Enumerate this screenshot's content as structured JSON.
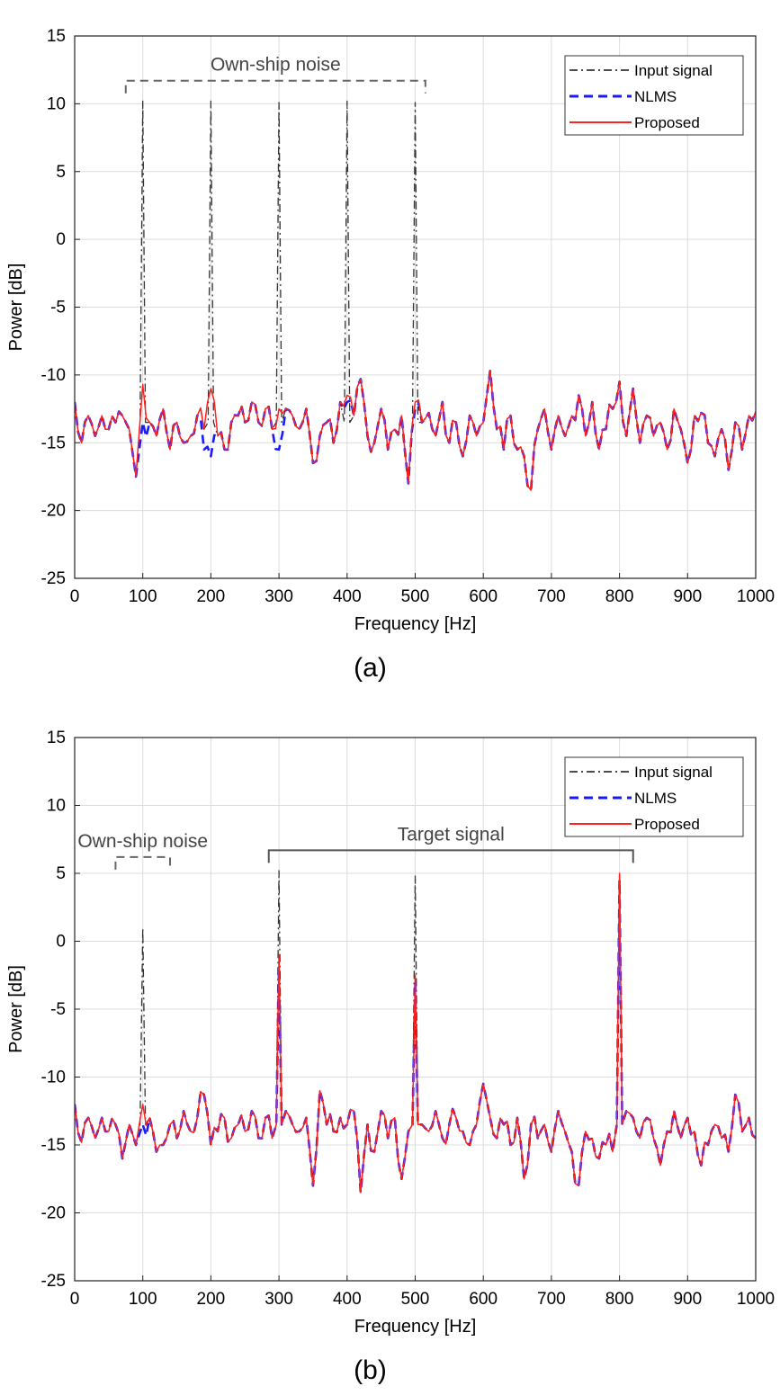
{
  "figure": {
    "captions": [
      "(a)",
      "(b)"
    ]
  },
  "chart_data": [
    {
      "type": "line",
      "panel": "(a)",
      "xlabel": "Frequency [Hz]",
      "ylabel": "Power [dB]",
      "xlim": [
        0,
        1000
      ],
      "ylim": [
        -25,
        15
      ],
      "xticks": [
        0,
        100,
        200,
        300,
        400,
        500,
        600,
        700,
        800,
        900,
        1000
      ],
      "yticks": [
        15,
        10,
        5,
        0,
        -5,
        -10,
        -15,
        -20,
        -25
      ],
      "grid": true,
      "legend_position": "top-right",
      "colors": {
        "Input signal": "#333333",
        "NLMS": "#1a1aff",
        "Proposed": "#ff2020"
      },
      "annotations": [
        {
          "text": "Own-ship noise",
          "x_range": [
            75,
            515
          ],
          "y": 11.7,
          "style": "dashed"
        }
      ],
      "peaks": {
        "Input signal": [
          [
            100,
            10.2
          ],
          [
            200,
            10.2
          ],
          [
            300,
            10.1
          ],
          [
            400,
            10.2
          ],
          [
            500,
            10.1
          ]
        ]
      },
      "noise_floor_db": -14,
      "x": [
        0,
        10,
        20,
        30,
        40,
        50,
        60,
        70,
        80,
        90,
        100,
        110,
        120,
        130,
        140,
        150,
        160,
        170,
        180,
        190,
        200,
        210,
        220,
        230,
        240,
        250,
        260,
        270,
        280,
        290,
        300,
        310,
        320,
        330,
        340,
        350,
        360,
        370,
        380,
        390,
        400,
        410,
        420,
        430,
        440,
        450,
        460,
        470,
        480,
        490,
        500,
        510,
        520,
        530,
        540,
        550,
        560,
        570,
        580,
        590,
        600,
        610,
        620,
        630,
        640,
        650,
        660,
        670,
        680,
        690,
        700,
        710,
        720,
        730,
        740,
        750,
        760,
        770,
        780,
        790,
        800,
        810,
        820,
        830,
        840,
        850,
        860,
        870,
        880,
        890,
        900,
        910,
        920,
        930,
        940,
        950,
        960,
        970,
        980,
        990,
        1000
      ],
      "series": [
        {
          "name": "Input signal",
          "values": [
            -12.0,
            -15.0,
            -13.0,
            -14.5,
            -13.0,
            -14.0,
            -13.5,
            -13.0,
            -14.0,
            -17.5,
            10.2,
            -13.5,
            -14.5,
            -12.5,
            -15.5,
            -13.5,
            -15.0,
            -14.5,
            -13.0,
            -14.0,
            10.2,
            -14.5,
            -15.5,
            -13.5,
            -13.0,
            -13.5,
            -12.0,
            -13.5,
            -12.5,
            -14.0,
            10.1,
            -12.5,
            -13.0,
            -14.0,
            -12.5,
            -16.5,
            -14.5,
            -13.5,
            -15.0,
            -12.0,
            10.2,
            -13.0,
            -10.3,
            -14.5,
            -15.0,
            -12.5,
            -15.5,
            -14.0,
            -13.0,
            -18.0,
            10.1,
            -13.5,
            -12.8,
            -14.5,
            -12.0,
            -15.0,
            -13.5,
            -16.0,
            -13.0,
            -14.5,
            -13.5,
            -9.7,
            -14.0,
            -15.5,
            -13.0,
            -15.5,
            -16.0,
            -18.5,
            -14.0,
            -12.5,
            -15.5,
            -13.0,
            -14.5,
            -13.0,
            -11.5,
            -14.5,
            -12.0,
            -15.5,
            -14.0,
            -12.5,
            -10.5,
            -14.5,
            -11.0,
            -15.0,
            -13.0,
            -14.5,
            -13.5,
            -15.5,
            -12.5,
            -14.0,
            -16.5,
            -13.0,
            -12.8,
            -15.0,
            -16.0,
            -14.0,
            -17.0,
            -13.5,
            -15.5,
            -13.0,
            -12.7
          ]
        },
        {
          "name": "NLMS",
          "values": [
            -12.0,
            -15.0,
            -13.0,
            -14.5,
            -13.0,
            -14.0,
            -13.5,
            -13.0,
            -14.0,
            -17.5,
            -13.5,
            -13.5,
            -14.5,
            -12.5,
            -15.5,
            -13.5,
            -15.0,
            -14.5,
            -13.0,
            -15.5,
            -16.0,
            -14.5,
            -15.5,
            -13.5,
            -13.0,
            -13.5,
            -12.0,
            -13.5,
            -12.5,
            -14.0,
            -15.5,
            -12.5,
            -13.0,
            -14.0,
            -12.5,
            -16.5,
            -14.5,
            -13.5,
            -15.0,
            -12.0,
            -12.0,
            -13.0,
            -10.3,
            -14.5,
            -15.0,
            -12.5,
            -15.5,
            -14.0,
            -13.0,
            -18.0,
            -12.5,
            -13.5,
            -12.8,
            -14.5,
            -12.0,
            -15.0,
            -13.5,
            -16.0,
            -13.0,
            -14.5,
            -13.5,
            -9.7,
            -14.0,
            -15.5,
            -13.0,
            -15.5,
            -16.0,
            -18.5,
            -14.0,
            -12.5,
            -15.5,
            -13.0,
            -14.5,
            -13.0,
            -11.5,
            -14.5,
            -12.0,
            -15.5,
            -14.0,
            -12.5,
            -10.5,
            -14.5,
            -11.0,
            -15.0,
            -13.0,
            -14.5,
            -13.5,
            -15.5,
            -12.5,
            -14.0,
            -16.5,
            -13.0,
            -12.8,
            -15.0,
            -16.0,
            -14.0,
            -17.0,
            -13.5,
            -15.5,
            -13.0,
            -12.7
          ]
        },
        {
          "name": "Proposed",
          "values": [
            -12.0,
            -15.0,
            -13.0,
            -14.5,
            -13.0,
            -14.0,
            -13.5,
            -13.0,
            -14.0,
            -17.5,
            -10.7,
            -13.5,
            -14.5,
            -12.5,
            -15.5,
            -13.5,
            -15.0,
            -14.5,
            -13.0,
            -14.0,
            -11.0,
            -14.5,
            -15.5,
            -13.5,
            -13.0,
            -13.5,
            -12.0,
            -13.5,
            -12.5,
            -14.0,
            -12.5,
            -12.5,
            -13.0,
            -14.0,
            -12.5,
            -16.5,
            -14.5,
            -13.5,
            -15.0,
            -12.0,
            -11.5,
            -13.0,
            -10.3,
            -14.5,
            -15.0,
            -12.5,
            -15.5,
            -14.0,
            -13.0,
            -18.0,
            -12.0,
            -13.5,
            -12.8,
            -14.5,
            -12.0,
            -15.0,
            -13.5,
            -16.0,
            -13.0,
            -14.5,
            -13.5,
            -9.7,
            -14.0,
            -15.5,
            -13.0,
            -15.5,
            -16.0,
            -18.5,
            -14.0,
            -12.5,
            -15.5,
            -13.0,
            -14.5,
            -13.0,
            -11.5,
            -14.5,
            -12.0,
            -15.5,
            -14.0,
            -12.5,
            -10.5,
            -14.5,
            -11.0,
            -15.0,
            -13.0,
            -14.5,
            -13.5,
            -15.5,
            -12.5,
            -14.0,
            -16.5,
            -13.0,
            -12.8,
            -15.0,
            -16.0,
            -14.0,
            -17.0,
            -13.5,
            -15.5,
            -13.0,
            -12.7
          ]
        }
      ]
    },
    {
      "type": "line",
      "panel": "(b)",
      "xlabel": "Frequency [Hz]",
      "ylabel": "Power [dB]",
      "xlim": [
        0,
        1000
      ],
      "ylim": [
        -25,
        15
      ],
      "xticks": [
        0,
        100,
        200,
        300,
        400,
        500,
        600,
        700,
        800,
        900,
        1000
      ],
      "yticks": [
        15,
        10,
        5,
        0,
        -5,
        -10,
        -15,
        -20,
        -25
      ],
      "grid": true,
      "legend_position": "top-right",
      "colors": {
        "Input signal": "#333333",
        "NLMS": "#1a1aff",
        "Proposed": "#ff2020"
      },
      "annotations": [
        {
          "text": "Own-ship noise",
          "x_range": [
            60,
            140
          ],
          "y": 6.2,
          "style": "dashed"
        },
        {
          "text": "Target signal",
          "x_range": [
            285,
            820
          ],
          "y": 6.7,
          "style": "solid"
        }
      ],
      "peaks": {
        "Input signal": [
          [
            100,
            1.0
          ],
          [
            300,
            5.2
          ],
          [
            500,
            4.8
          ],
          [
            800,
            5.0
          ]
        ],
        "NLMS": [
          [
            300,
            -2.0
          ],
          [
            500,
            -3.0
          ],
          [
            800,
            4.5
          ]
        ],
        "Proposed": [
          [
            300,
            -1.0
          ],
          [
            500,
            -2.5
          ],
          [
            800,
            5.0
          ]
        ]
      },
      "noise_floor_db": -14,
      "x": [
        0,
        10,
        20,
        30,
        40,
        50,
        60,
        70,
        80,
        90,
        100,
        110,
        120,
        130,
        140,
        150,
        160,
        170,
        180,
        190,
        200,
        210,
        220,
        230,
        240,
        250,
        260,
        270,
        280,
        290,
        300,
        310,
        320,
        330,
        340,
        350,
        360,
        370,
        380,
        390,
        400,
        410,
        420,
        430,
        440,
        450,
        460,
        470,
        480,
        490,
        500,
        510,
        520,
        530,
        540,
        550,
        560,
        570,
        580,
        590,
        600,
        610,
        620,
        630,
        640,
        650,
        660,
        670,
        680,
        690,
        700,
        710,
        720,
        730,
        740,
        750,
        760,
        770,
        780,
        790,
        800,
        810,
        820,
        830,
        840,
        850,
        860,
        870,
        880,
        890,
        900,
        910,
        920,
        930,
        940,
        950,
        960,
        970,
        980,
        990,
        1000
      ],
      "series": [
        {
          "name": "Input signal",
          "values": [
            -12.0,
            -14.8,
            -13.0,
            -14.5,
            -13.0,
            -14.0,
            -13.5,
            -16.0,
            -13.5,
            -15.0,
            1.0,
            -13.0,
            -15.5,
            -15.0,
            -13.5,
            -14.5,
            -12.5,
            -14.0,
            -13.0,
            -11.3,
            -15.0,
            -14.0,
            -13.0,
            -14.5,
            -13.5,
            -14.0,
            -12.5,
            -14.5,
            -13.0,
            -14.5,
            5.2,
            -12.5,
            -13.5,
            -14.0,
            -13.0,
            -18.0,
            -11.0,
            -13.5,
            -14.0,
            -13.0,
            -13.5,
            -12.5,
            -18.5,
            -13.5,
            -15.5,
            -12.5,
            -14.5,
            -13.0,
            -17.5,
            -14.0,
            4.8,
            -13.5,
            -14.0,
            -12.5,
            -14.5,
            -13.5,
            -13.0,
            -14.0,
            -15.0,
            -13.5,
            -10.5,
            -13.0,
            -14.5,
            -13.5,
            -15.0,
            -13.0,
            -17.5,
            -13.5,
            -14.5,
            -13.5,
            -15.5,
            -12.5,
            -14.0,
            -15.5,
            -18.0,
            -14.0,
            -14.5,
            -16.0,
            -15.0,
            -15.5,
            5.0,
            -12.5,
            -13.0,
            -14.5,
            -13.0,
            -14.5,
            -16.5,
            -14.0,
            -12.5,
            -14.5,
            -13.0,
            -14.0,
            -16.5,
            -15.0,
            -13.5,
            -14.5,
            -15.5,
            -11.3,
            -14.0,
            -13.0,
            -14.5
          ]
        },
        {
          "name": "NLMS",
          "values": [
            -12.0,
            -14.8,
            -13.0,
            -14.5,
            -13.0,
            -14.0,
            -13.5,
            -16.0,
            -13.5,
            -15.0,
            -13.5,
            -13.0,
            -15.5,
            -15.0,
            -13.5,
            -14.5,
            -12.5,
            -14.0,
            -13.0,
            -11.3,
            -15.0,
            -14.0,
            -13.0,
            -14.5,
            -13.5,
            -14.0,
            -12.5,
            -14.5,
            -13.0,
            -14.5,
            -2.0,
            -12.5,
            -13.5,
            -14.0,
            -13.0,
            -18.0,
            -11.0,
            -13.5,
            -14.0,
            -13.0,
            -13.5,
            -12.5,
            -18.5,
            -13.5,
            -15.5,
            -12.5,
            -14.5,
            -13.0,
            -17.5,
            -14.0,
            -3.0,
            -13.5,
            -14.0,
            -12.5,
            -14.5,
            -13.5,
            -13.0,
            -14.0,
            -15.0,
            -13.5,
            -10.5,
            -13.0,
            -14.5,
            -13.5,
            -15.0,
            -13.0,
            -17.5,
            -13.5,
            -14.5,
            -13.5,
            -15.5,
            -12.5,
            -14.0,
            -15.5,
            -18.0,
            -14.0,
            -14.5,
            -16.0,
            -15.0,
            -15.5,
            4.5,
            -12.5,
            -13.0,
            -14.5,
            -13.0,
            -14.5,
            -16.5,
            -14.0,
            -12.5,
            -14.5,
            -13.0,
            -14.0,
            -16.5,
            -15.0,
            -13.5,
            -14.5,
            -15.5,
            -11.3,
            -14.0,
            -13.0,
            -14.5
          ]
        },
        {
          "name": "Proposed",
          "values": [
            -12.0,
            -14.8,
            -13.0,
            -14.5,
            -13.0,
            -14.0,
            -13.5,
            -16.0,
            -13.5,
            -15.0,
            -12.0,
            -13.0,
            -15.5,
            -15.0,
            -13.5,
            -14.5,
            -12.5,
            -14.0,
            -13.0,
            -11.3,
            -15.0,
            -14.0,
            -13.0,
            -14.5,
            -13.5,
            -14.0,
            -12.5,
            -14.5,
            -13.0,
            -14.5,
            -1.0,
            -12.5,
            -13.5,
            -14.0,
            -13.0,
            -18.0,
            -11.0,
            -13.5,
            -14.0,
            -13.0,
            -13.5,
            -12.5,
            -18.5,
            -13.5,
            -15.5,
            -12.5,
            -14.5,
            -13.0,
            -17.5,
            -14.0,
            -2.5,
            -13.5,
            -14.0,
            -12.5,
            -14.5,
            -13.5,
            -13.0,
            -14.0,
            -15.0,
            -13.5,
            -10.5,
            -13.0,
            -14.5,
            -13.5,
            -15.0,
            -13.0,
            -17.5,
            -13.5,
            -14.5,
            -13.5,
            -15.5,
            -12.5,
            -14.0,
            -15.5,
            -18.0,
            -14.0,
            -14.5,
            -16.0,
            -15.0,
            -15.5,
            5.0,
            -12.5,
            -13.0,
            -14.5,
            -13.0,
            -14.5,
            -16.5,
            -14.0,
            -12.5,
            -14.5,
            -13.0,
            -14.0,
            -16.5,
            -15.0,
            -13.5,
            -14.5,
            -15.5,
            -11.3,
            -14.0,
            -13.0,
            -14.5
          ]
        }
      ]
    }
  ]
}
